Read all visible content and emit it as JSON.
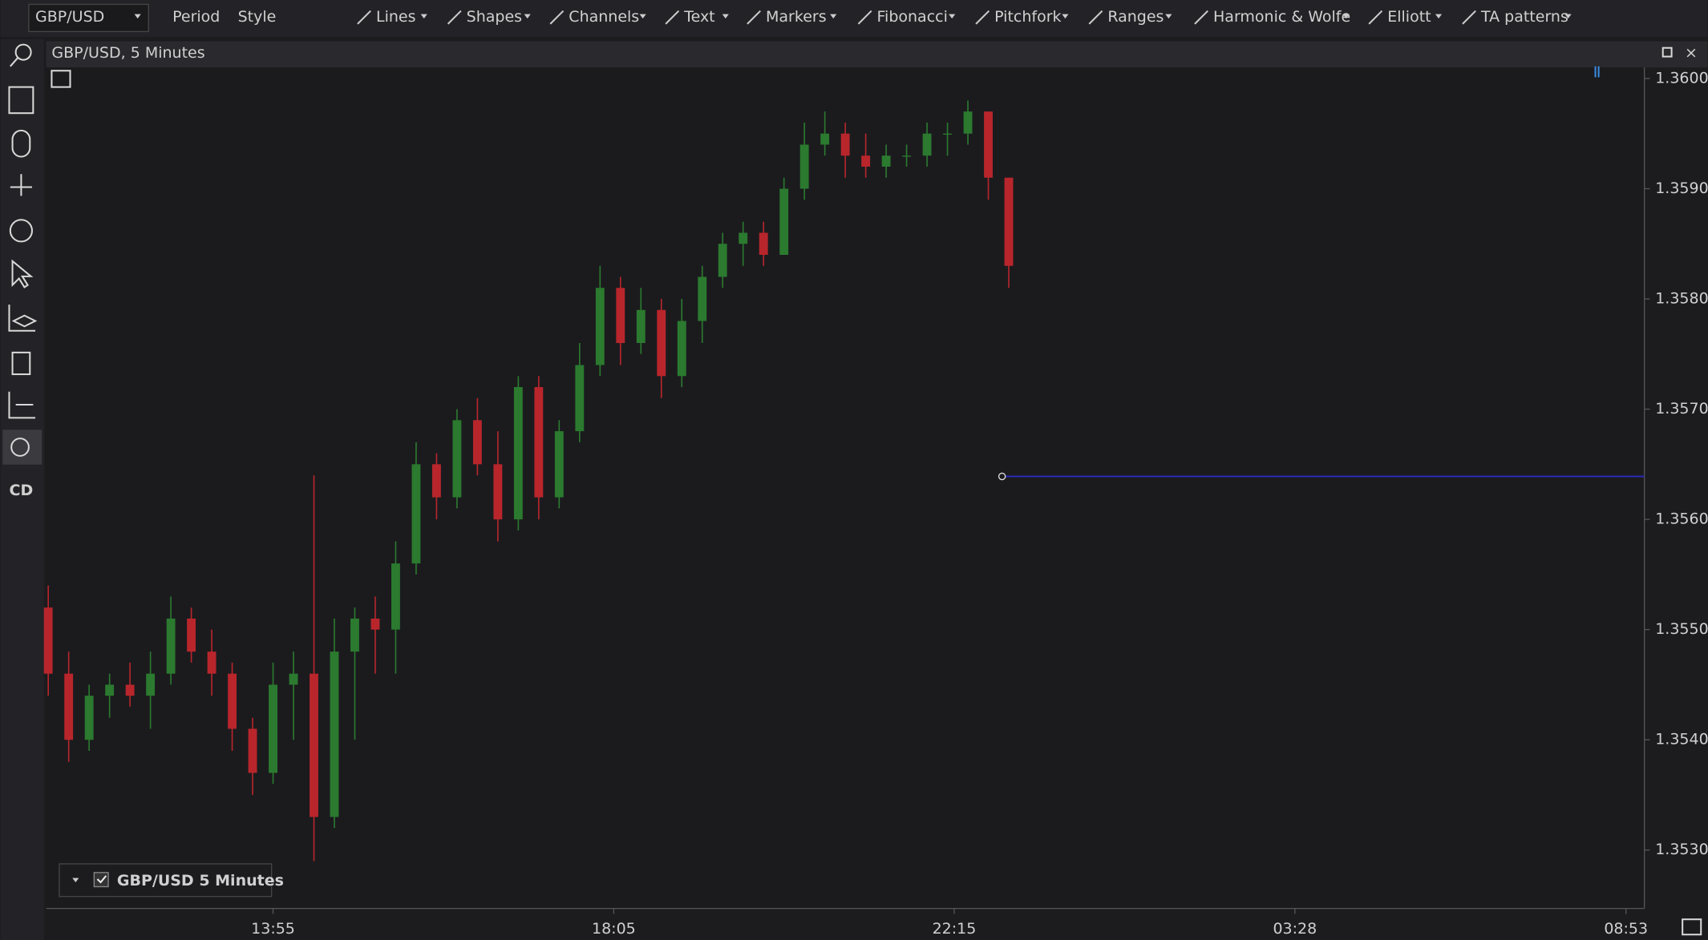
{
  "toolbar": {
    "symbol": "GBP/USD",
    "menus": [
      "Period",
      "Style"
    ],
    "tools": [
      "Lines",
      "Shapes",
      "Channels",
      "Text",
      "Markers",
      "Fibonacci",
      "Pitchfork",
      "Ranges",
      "Harmonic & Wolfe",
      "Elliott",
      "TA patterns"
    ]
  },
  "side_toolbar": {
    "cd_button": "CD"
  },
  "chart_data": {
    "type": "candlestick",
    "title": "GBP/USD, 5 Minutes",
    "legend": "GBP/USD 5 Minutes",
    "up_color": "#2b7a2f",
    "down_color": "#b8262c",
    "x": [
      0,
      1,
      2,
      3,
      4,
      5,
      6,
      7,
      8,
      9,
      10,
      11,
      12,
      13,
      14,
      15,
      16,
      17,
      18,
      19,
      20,
      21,
      22,
      23,
      24,
      25,
      26,
      27,
      28,
      29,
      30,
      31,
      32,
      33,
      34,
      35,
      36,
      37,
      38,
      39,
      40,
      41,
      42,
      43,
      44,
      45,
      46,
      47
    ],
    "open": [
      1.3552,
      1.3546,
      1.354,
      1.3544,
      1.3545,
      1.3544,
      1.3546,
      1.3551,
      1.3548,
      1.3546,
      1.3541,
      1.3537,
      1.3545,
      1.3546,
      1.3533,
      1.3548,
      1.3551,
      1.355,
      1.3556,
      1.3565,
      1.3562,
      1.3569,
      1.3565,
      1.356,
      1.3572,
      1.3562,
      1.3568,
      1.3574,
      1.3581,
      1.3576,
      1.3579,
      1.3573,
      1.3578,
      1.3582,
      1.3585,
      1.3586,
      1.3584,
      1.359,
      1.3594,
      1.3595,
      1.3593,
      1.3592,
      1.3593,
      1.3593,
      1.3595,
      1.3595,
      1.3597,
      1.3591
    ],
    "high": [
      1.3554,
      1.3548,
      1.3545,
      1.3546,
      1.3547,
      1.3548,
      1.3553,
      1.3552,
      1.355,
      1.3547,
      1.3542,
      1.3547,
      1.3548,
      1.3564,
      1.3551,
      1.3552,
      1.3553,
      1.3558,
      1.3567,
      1.3566,
      1.357,
      1.3571,
      1.3568,
      1.3573,
      1.3573,
      1.3569,
      1.3576,
      1.3583,
      1.3582,
      1.3581,
      1.358,
      1.358,
      1.3583,
      1.3586,
      1.3587,
      1.3587,
      1.3591,
      1.3596,
      1.3597,
      1.3596,
      1.3595,
      1.3594,
      1.3594,
      1.3596,
      1.3596,
      1.3598,
      1.3597,
      1.3591
    ],
    "low": [
      1.3544,
      1.3538,
      1.3539,
      1.3542,
      1.3543,
      1.3541,
      1.3545,
      1.3547,
      1.3544,
      1.3539,
      1.3535,
      1.3536,
      1.354,
      1.3529,
      1.3532,
      1.354,
      1.3546,
      1.3546,
      1.3555,
      1.356,
      1.3561,
      1.3564,
      1.3558,
      1.3559,
      1.356,
      1.3561,
      1.3567,
      1.3573,
      1.3574,
      1.3575,
      1.3571,
      1.3572,
      1.3576,
      1.3581,
      1.3583,
      1.3583,
      1.3584,
      1.3589,
      1.3593,
      1.3591,
      1.3591,
      1.3591,
      1.3592,
      1.3592,
      1.3593,
      1.3594,
      1.3589,
      1.3581
    ],
    "close": [
      1.3546,
      1.354,
      1.3544,
      1.3545,
      1.3544,
      1.3546,
      1.3551,
      1.3548,
      1.3546,
      1.3541,
      1.3537,
      1.3545,
      1.3546,
      1.3533,
      1.3548,
      1.3551,
      1.355,
      1.3556,
      1.3565,
      1.3562,
      1.3569,
      1.3565,
      1.356,
      1.3572,
      1.3562,
      1.3568,
      1.3574,
      1.3581,
      1.3576,
      1.3579,
      1.3573,
      1.3578,
      1.3582,
      1.3585,
      1.3586,
      1.3584,
      1.359,
      1.3594,
      1.3595,
      1.3593,
      1.3592,
      1.3593,
      1.3593,
      1.3595,
      1.3595,
      1.3597,
      1.3591,
      1.3583
    ],
    "xlim": [
      -0.1,
      78.1
    ],
    "xticks": [
      {
        "value": 11,
        "label": "13:55"
      },
      {
        "value": 27.67,
        "label": "18:05"
      },
      {
        "value": 44.33,
        "label": "22:15"
      },
      {
        "value": 61,
        "label": "03:28"
      },
      {
        "value": 77.2,
        "label": "08:53"
      }
    ],
    "ylim": [
      1.35247,
      1.3601
    ],
    "yticks": [
      {
        "value": 1.353,
        "label": "1.35300"
      },
      {
        "value": 1.354,
        "label": "1.35400"
      },
      {
        "value": 1.355,
        "label": "1.35500"
      },
      {
        "value": 1.356,
        "label": "1.35600"
      },
      {
        "value": 1.357,
        "label": "1.35700"
      },
      {
        "value": 1.358,
        "label": "1.35800"
      },
      {
        "value": 1.359,
        "label": "1.35900"
      },
      {
        "value": 1.36,
        "label": "1.36000"
      }
    ],
    "horizontal_line": {
      "value": 1.35639,
      "color": "#2a2ab8"
    }
  }
}
